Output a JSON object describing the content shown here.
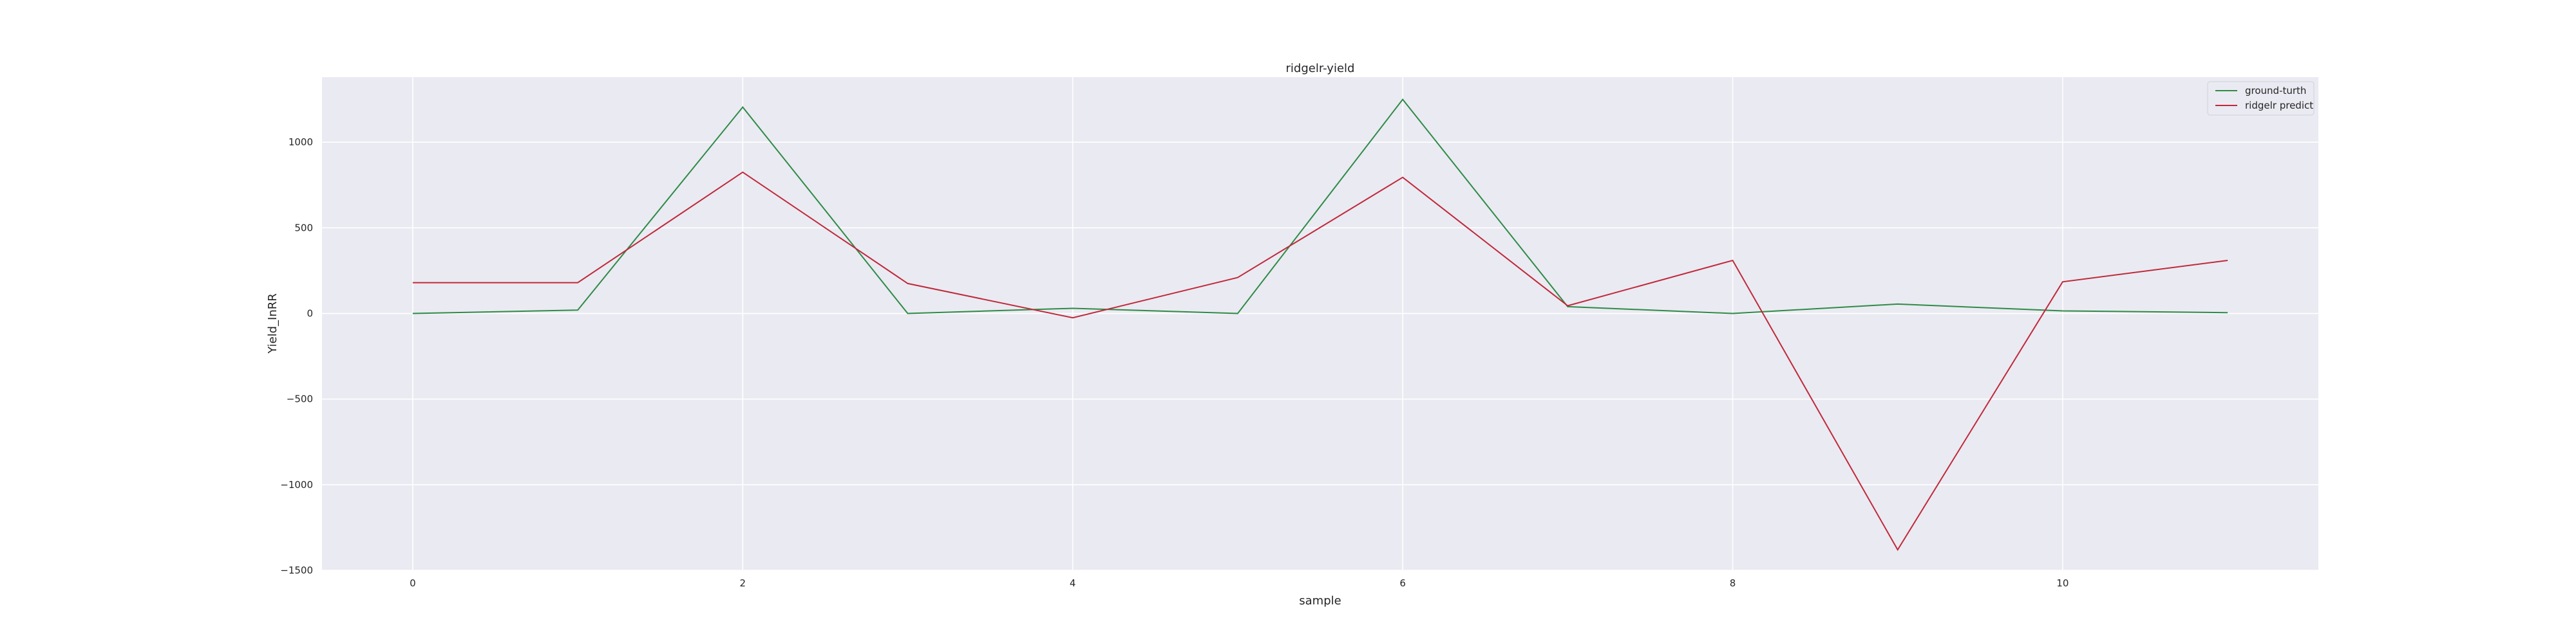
{
  "chart_data": {
    "type": "line",
    "title": "ridgelr-yield",
    "xlabel": "sample",
    "ylabel": "Yield_InRR",
    "x": [
      0,
      1,
      2,
      3,
      4,
      5,
      6,
      7,
      8,
      9,
      10,
      11
    ],
    "xlim": [
      -0.55,
      11.55
    ],
    "ylim": [
      -1500,
      1380
    ],
    "xticks": [
      0,
      2,
      4,
      6,
      8,
      10
    ],
    "yticks": [
      -1500,
      -1000,
      -500,
      0,
      500,
      1000
    ],
    "ytick_labels": [
      "−1500",
      "−1000",
      "−500",
      "0",
      "500",
      "1000"
    ],
    "grid": true,
    "legend_position": "top-right",
    "colors": {
      "background": "#eaeaf2",
      "grid": "#ffffff"
    },
    "series": [
      {
        "name": "ground-turth",
        "color": "#2e8b46",
        "values": [
          0,
          20,
          1205,
          0,
          30,
          0,
          1250,
          40,
          0,
          55,
          15,
          5
        ]
      },
      {
        "name": "ridgelr predict",
        "color": "#c0293a",
        "values": [
          180,
          180,
          825,
          175,
          -25,
          210,
          795,
          45,
          310,
          -1380,
          185,
          310
        ]
      }
    ]
  }
}
